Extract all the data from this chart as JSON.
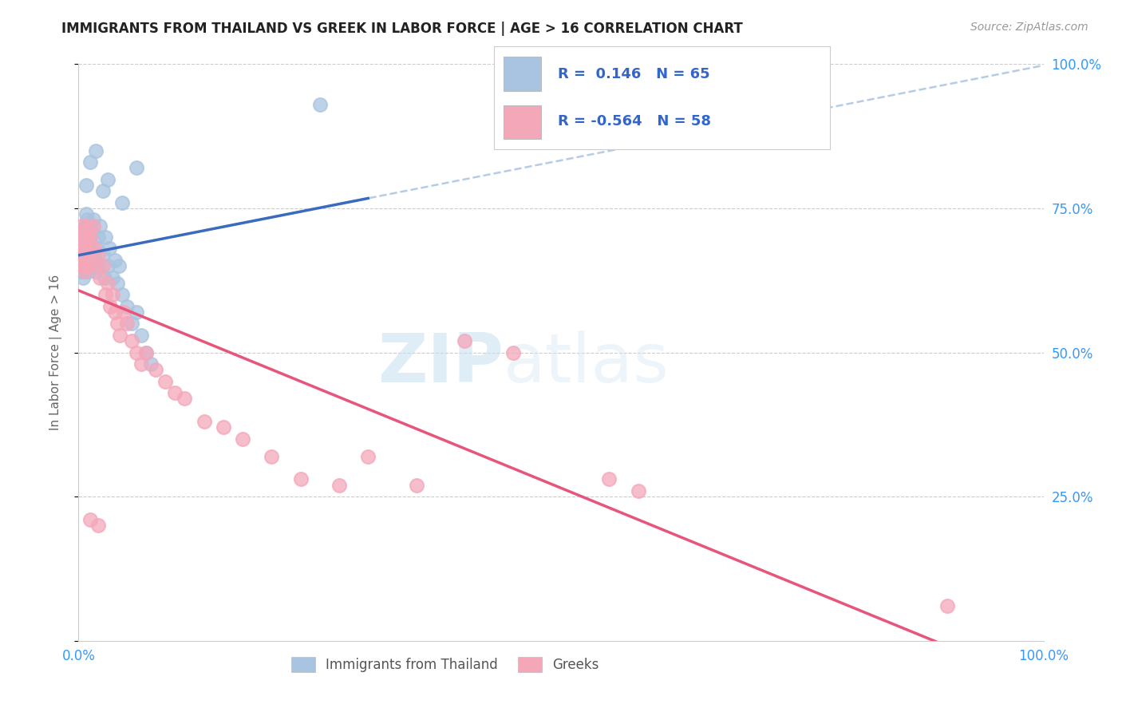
{
  "title": "IMMIGRANTS FROM THAILAND VS GREEK IN LABOR FORCE | AGE > 16 CORRELATION CHART",
  "source": "Source: ZipAtlas.com",
  "ylabel": "In Labor Force | Age > 16",
  "legend_labels": [
    "Immigrants from Thailand",
    "Greeks"
  ],
  "r_thailand": 0.146,
  "n_thailand": 65,
  "r_greek": -0.564,
  "n_greek": 58,
  "background_color": "#ffffff",
  "scatter_color_thailand": "#a8c4e0",
  "scatter_color_greek": "#f4a7b9",
  "line_color_thailand": "#3a6bbf",
  "line_color_greek": "#e8557a",
  "watermark_zip": "ZIP",
  "watermark_atlas": "atlas",
  "thailand_scatter_x": [
    0.001,
    0.002,
    0.002,
    0.003,
    0.003,
    0.003,
    0.004,
    0.004,
    0.004,
    0.004,
    0.005,
    0.005,
    0.005,
    0.005,
    0.006,
    0.006,
    0.006,
    0.007,
    0.007,
    0.008,
    0.008,
    0.008,
    0.009,
    0.009,
    0.01,
    0.01,
    0.01,
    0.011,
    0.011,
    0.012,
    0.013,
    0.013,
    0.014,
    0.015,
    0.016,
    0.017,
    0.018,
    0.019,
    0.02,
    0.021,
    0.022,
    0.025,
    0.027,
    0.028,
    0.03,
    0.032,
    0.035,
    0.038,
    0.04,
    0.042,
    0.045,
    0.05,
    0.055,
    0.06,
    0.065,
    0.07,
    0.075,
    0.008,
    0.012,
    0.018,
    0.025,
    0.03,
    0.045,
    0.06,
    0.25
  ],
  "thailand_scatter_y": [
    0.66,
    0.67,
    0.65,
    0.68,
    0.66,
    0.64,
    0.67,
    0.66,
    0.65,
    0.64,
    0.68,
    0.67,
    0.65,
    0.63,
    0.69,
    0.66,
    0.64,
    0.72,
    0.68,
    0.74,
    0.71,
    0.65,
    0.73,
    0.67,
    0.7,
    0.68,
    0.64,
    0.72,
    0.67,
    0.7,
    0.68,
    0.65,
    0.71,
    0.73,
    0.67,
    0.66,
    0.64,
    0.68,
    0.7,
    0.65,
    0.72,
    0.67,
    0.63,
    0.7,
    0.65,
    0.68,
    0.63,
    0.66,
    0.62,
    0.65,
    0.6,
    0.58,
    0.55,
    0.57,
    0.53,
    0.5,
    0.48,
    0.79,
    0.83,
    0.85,
    0.78,
    0.8,
    0.76,
    0.82,
    0.93
  ],
  "greek_scatter_x": [
    0.001,
    0.002,
    0.003,
    0.003,
    0.004,
    0.004,
    0.005,
    0.005,
    0.006,
    0.006,
    0.007,
    0.007,
    0.008,
    0.008,
    0.009,
    0.01,
    0.01,
    0.011,
    0.012,
    0.013,
    0.015,
    0.016,
    0.018,
    0.02,
    0.022,
    0.025,
    0.028,
    0.03,
    0.033,
    0.035,
    0.038,
    0.04,
    0.043,
    0.047,
    0.05,
    0.055,
    0.06,
    0.065,
    0.07,
    0.08,
    0.09,
    0.1,
    0.11,
    0.13,
    0.15,
    0.17,
    0.2,
    0.23,
    0.27,
    0.3,
    0.35,
    0.4,
    0.45,
    0.55,
    0.58,
    0.012,
    0.02,
    0.9
  ],
  "greek_scatter_y": [
    0.68,
    0.7,
    0.72,
    0.67,
    0.69,
    0.65,
    0.71,
    0.66,
    0.68,
    0.64,
    0.7,
    0.65,
    0.72,
    0.67,
    0.69,
    0.68,
    0.65,
    0.71,
    0.7,
    0.67,
    0.72,
    0.68,
    0.65,
    0.67,
    0.63,
    0.65,
    0.6,
    0.62,
    0.58,
    0.6,
    0.57,
    0.55,
    0.53,
    0.57,
    0.55,
    0.52,
    0.5,
    0.48,
    0.5,
    0.47,
    0.45,
    0.43,
    0.42,
    0.38,
    0.37,
    0.35,
    0.32,
    0.28,
    0.27,
    0.32,
    0.27,
    0.52,
    0.5,
    0.28,
    0.26,
    0.21,
    0.2,
    0.06
  ]
}
